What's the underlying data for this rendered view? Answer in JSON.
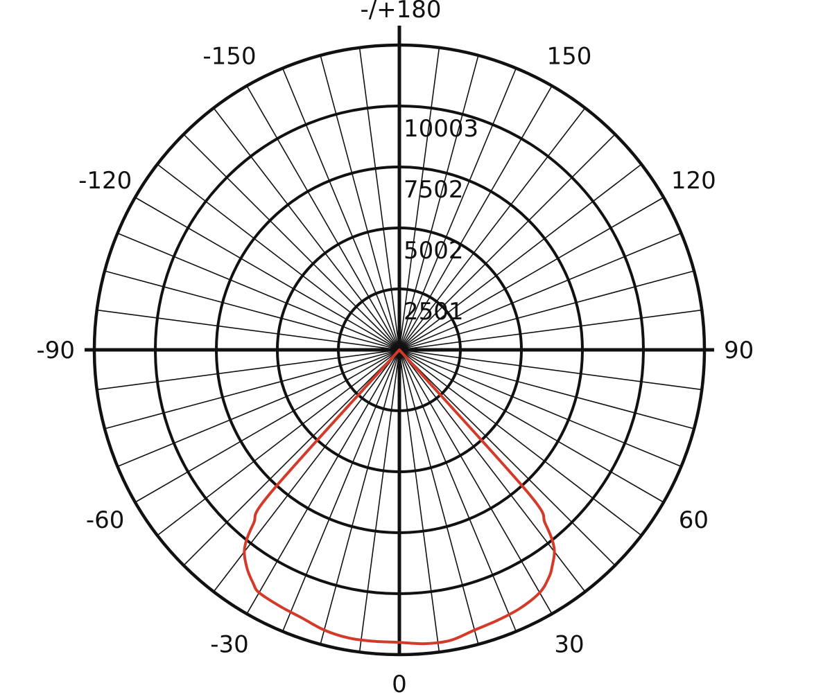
{
  "chart_data": {
    "type": "polar",
    "angle_labels": [
      {
        "angle": 0,
        "text": "0"
      },
      {
        "angle": 30,
        "text": "30"
      },
      {
        "angle": 60,
        "text": "60"
      },
      {
        "angle": 90,
        "text": "90"
      },
      {
        "angle": 120,
        "text": "120"
      },
      {
        "angle": 150,
        "text": "150"
      },
      {
        "angle": 180,
        "text": "-/+180"
      },
      {
        "angle": -150,
        "text": "-150"
      },
      {
        "angle": -120,
        "text": "-120"
      },
      {
        "angle": -90,
        "text": "-90"
      },
      {
        "angle": -60,
        "text": "-60"
      },
      {
        "angle": -30,
        "text": "-30"
      }
    ],
    "radial_rings": [
      {
        "value": 2501,
        "text": "2501"
      },
      {
        "value": 5002,
        "text": "5002"
      },
      {
        "value": 7502,
        "text": "7502"
      },
      {
        "value": 10003,
        "text": "10003"
      }
    ],
    "r_max": 12504,
    "spoke_step_deg": 7.5,
    "series": [
      {
        "color": "#d43a2a",
        "points": [
          [
            -45,
            0
          ],
          [
            -42,
            7800
          ],
          [
            -40,
            9300
          ],
          [
            -38,
            10300
          ],
          [
            -35,
            10900
          ],
          [
            -32,
            11300
          ],
          [
            -30,
            11500
          ],
          [
            -25,
            11600
          ],
          [
            -20,
            11700
          ],
          [
            -15,
            11900
          ],
          [
            -10,
            12000
          ],
          [
            -5,
            12000
          ],
          [
            0,
            12000
          ],
          [
            5,
            12100
          ],
          [
            10,
            12100
          ],
          [
            15,
            11900
          ],
          [
            20,
            11800
          ],
          [
            25,
            11700
          ],
          [
            30,
            11500
          ],
          [
            33,
            11200
          ],
          [
            35,
            10900
          ],
          [
            38,
            10300
          ],
          [
            40,
            9300
          ],
          [
            42,
            7800
          ],
          [
            45,
            0
          ]
        ]
      }
    ]
  }
}
